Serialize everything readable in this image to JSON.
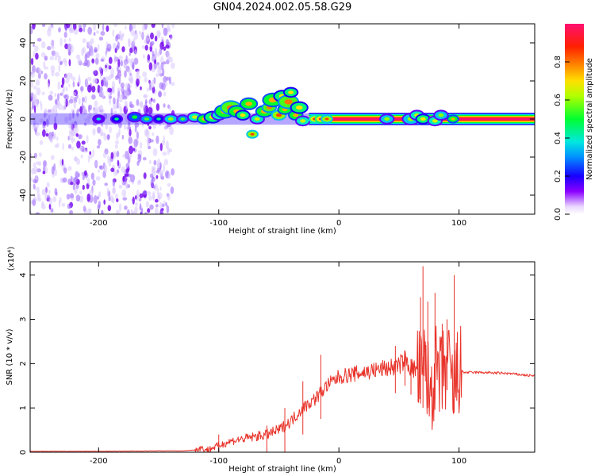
{
  "title": "GN04.2024.002.05.58.G29",
  "chart_data": [
    {
      "type": "heatmap",
      "title": "GN04.2024.002.05.58.G29",
      "xlabel": "Height of straight line (km)",
      "ylabel": "Frequency (Hz)",
      "xlim": [
        -257,
        163
      ],
      "ylim": [
        -50,
        50
      ],
      "xticks": [
        -200,
        -100,
        0,
        100
      ],
      "yticks": [
        -40,
        -20,
        0,
        20,
        40
      ],
      "colorbar": {
        "label": "Normalized spectral amplitude",
        "range": [
          0,
          1
        ],
        "ticks": [
          "0.0",
          "0.2",
          "0.4",
          "0.6",
          "0.8"
        ],
        "tick_values": [
          0,
          0.2,
          0.4,
          0.6,
          0.8
        ]
      },
      "features": {
        "noise_region_x": [
          -257,
          -138
        ],
        "main_band_frequency_hz": 0,
        "strong_band_start_x": -25,
        "disturbed_region_x": [
          -120,
          -25
        ],
        "max_excursion_hz": 16
      },
      "blobs": [
        [
          -200,
          0,
          1.6,
          0.15
        ],
        [
          -185,
          0,
          1.6,
          0.2
        ],
        [
          -170,
          1,
          2,
          0.25
        ],
        [
          -160,
          0,
          1.8,
          0.3
        ],
        [
          -150,
          0,
          1.6,
          0.2
        ],
        [
          -140,
          0,
          2,
          0.35
        ],
        [
          -130,
          0,
          1.6,
          0.3
        ],
        [
          -120,
          1,
          2,
          0.4
        ],
        [
          -112,
          0,
          2,
          0.5
        ],
        [
          -105,
          1,
          2.5,
          0.45
        ],
        [
          -100,
          2,
          2,
          0.4
        ],
        [
          -95,
          4,
          3,
          0.5
        ],
        [
          -90,
          6,
          3,
          0.55
        ],
        [
          -85,
          4,
          2.5,
          0.5
        ],
        [
          -80,
          2,
          2,
          0.45
        ],
        [
          -75,
          8,
          2.5,
          0.5
        ],
        [
          -72,
          -8,
          1.5,
          0.6
        ],
        [
          -68,
          0,
          2,
          0.4
        ],
        [
          -62,
          4,
          2.5,
          0.5
        ],
        [
          -58,
          6,
          2,
          0.55
        ],
        [
          -55,
          10,
          3,
          0.5
        ],
        [
          -50,
          2,
          2,
          0.6
        ],
        [
          -47,
          12,
          2.5,
          0.45
        ],
        [
          -45,
          5,
          2,
          0.5
        ],
        [
          -42,
          9,
          3,
          0.55
        ],
        [
          -40,
          14,
          2,
          0.45
        ],
        [
          -36,
          2,
          2,
          0.5
        ],
        [
          -33,
          6,
          2.5,
          0.45
        ],
        [
          -30,
          -1,
          2,
          0.4
        ],
        [
          -20,
          0,
          1.5,
          0.65
        ],
        [
          -15,
          0,
          1.5,
          0.7
        ],
        [
          -10,
          0,
          1.5,
          0.6
        ],
        [
          40,
          0,
          2,
          0.35
        ],
        [
          60,
          0,
          2.5,
          0.35
        ],
        [
          65,
          2,
          2,
          0.4
        ],
        [
          70,
          0,
          2,
          0.45
        ],
        [
          80,
          -1,
          2,
          0.4
        ],
        [
          85,
          2,
          2,
          0.35
        ],
        [
          95,
          0,
          1.5,
          0.5
        ]
      ]
    },
    {
      "type": "line",
      "xlabel": "Height of straight line (km)",
      "ylabel": "SNR (10 * v/v)",
      "y_multiplier": "(x10⁴)",
      "xlim": [
        -257,
        163
      ],
      "ylim": [
        0,
        4.3
      ],
      "xticks": [
        -200,
        -100,
        0,
        100
      ],
      "yticks": [
        0,
        1,
        2,
        3,
        4
      ],
      "color": "#e8332a",
      "series": [
        {
          "x": [
            -257,
            -200,
            -150,
            -130,
            -120,
            -115,
            -110,
            -100,
            -90,
            -80,
            -70,
            -60,
            -50,
            -40,
            -30,
            -20,
            -10,
            0,
            10,
            20,
            30,
            40,
            50,
            55,
            60,
            65,
            70,
            72,
            75,
            80,
            85,
            90,
            95,
            100,
            105,
            120,
            140,
            163
          ],
          "y": [
            0.02,
            0.02,
            0.03,
            0.03,
            0.05,
            0.1,
            0.05,
            0.15,
            0.25,
            0.3,
            0.35,
            0.4,
            0.5,
            0.7,
            1.0,
            1.2,
            1.5,
            1.7,
            1.75,
            1.8,
            1.85,
            1.9,
            1.95,
            2.1,
            1.9,
            1.85,
            1.6,
            2.2,
            1.3,
            1.8,
            1.6,
            2.0,
            1.4,
            1.85,
            1.8,
            1.8,
            1.78,
            1.72
          ]
        }
      ],
      "spikes": [
        [
          -15,
          2.2
        ],
        [
          -30,
          1.6
        ],
        [
          -45,
          1.0
        ],
        [
          -60,
          0.6
        ],
        [
          -100,
          0.4
        ],
        [
          47,
          2.4
        ],
        [
          55,
          2.3
        ],
        [
          60,
          2.1
        ],
        [
          68,
          3.5
        ],
        [
          70,
          4.2
        ],
        [
          72,
          2.5
        ],
        [
          74,
          3.4
        ],
        [
          80,
          3.6
        ],
        [
          86,
          2.9
        ],
        [
          90,
          3.0
        ],
        [
          96,
          4.0
        ]
      ]
    }
  ]
}
